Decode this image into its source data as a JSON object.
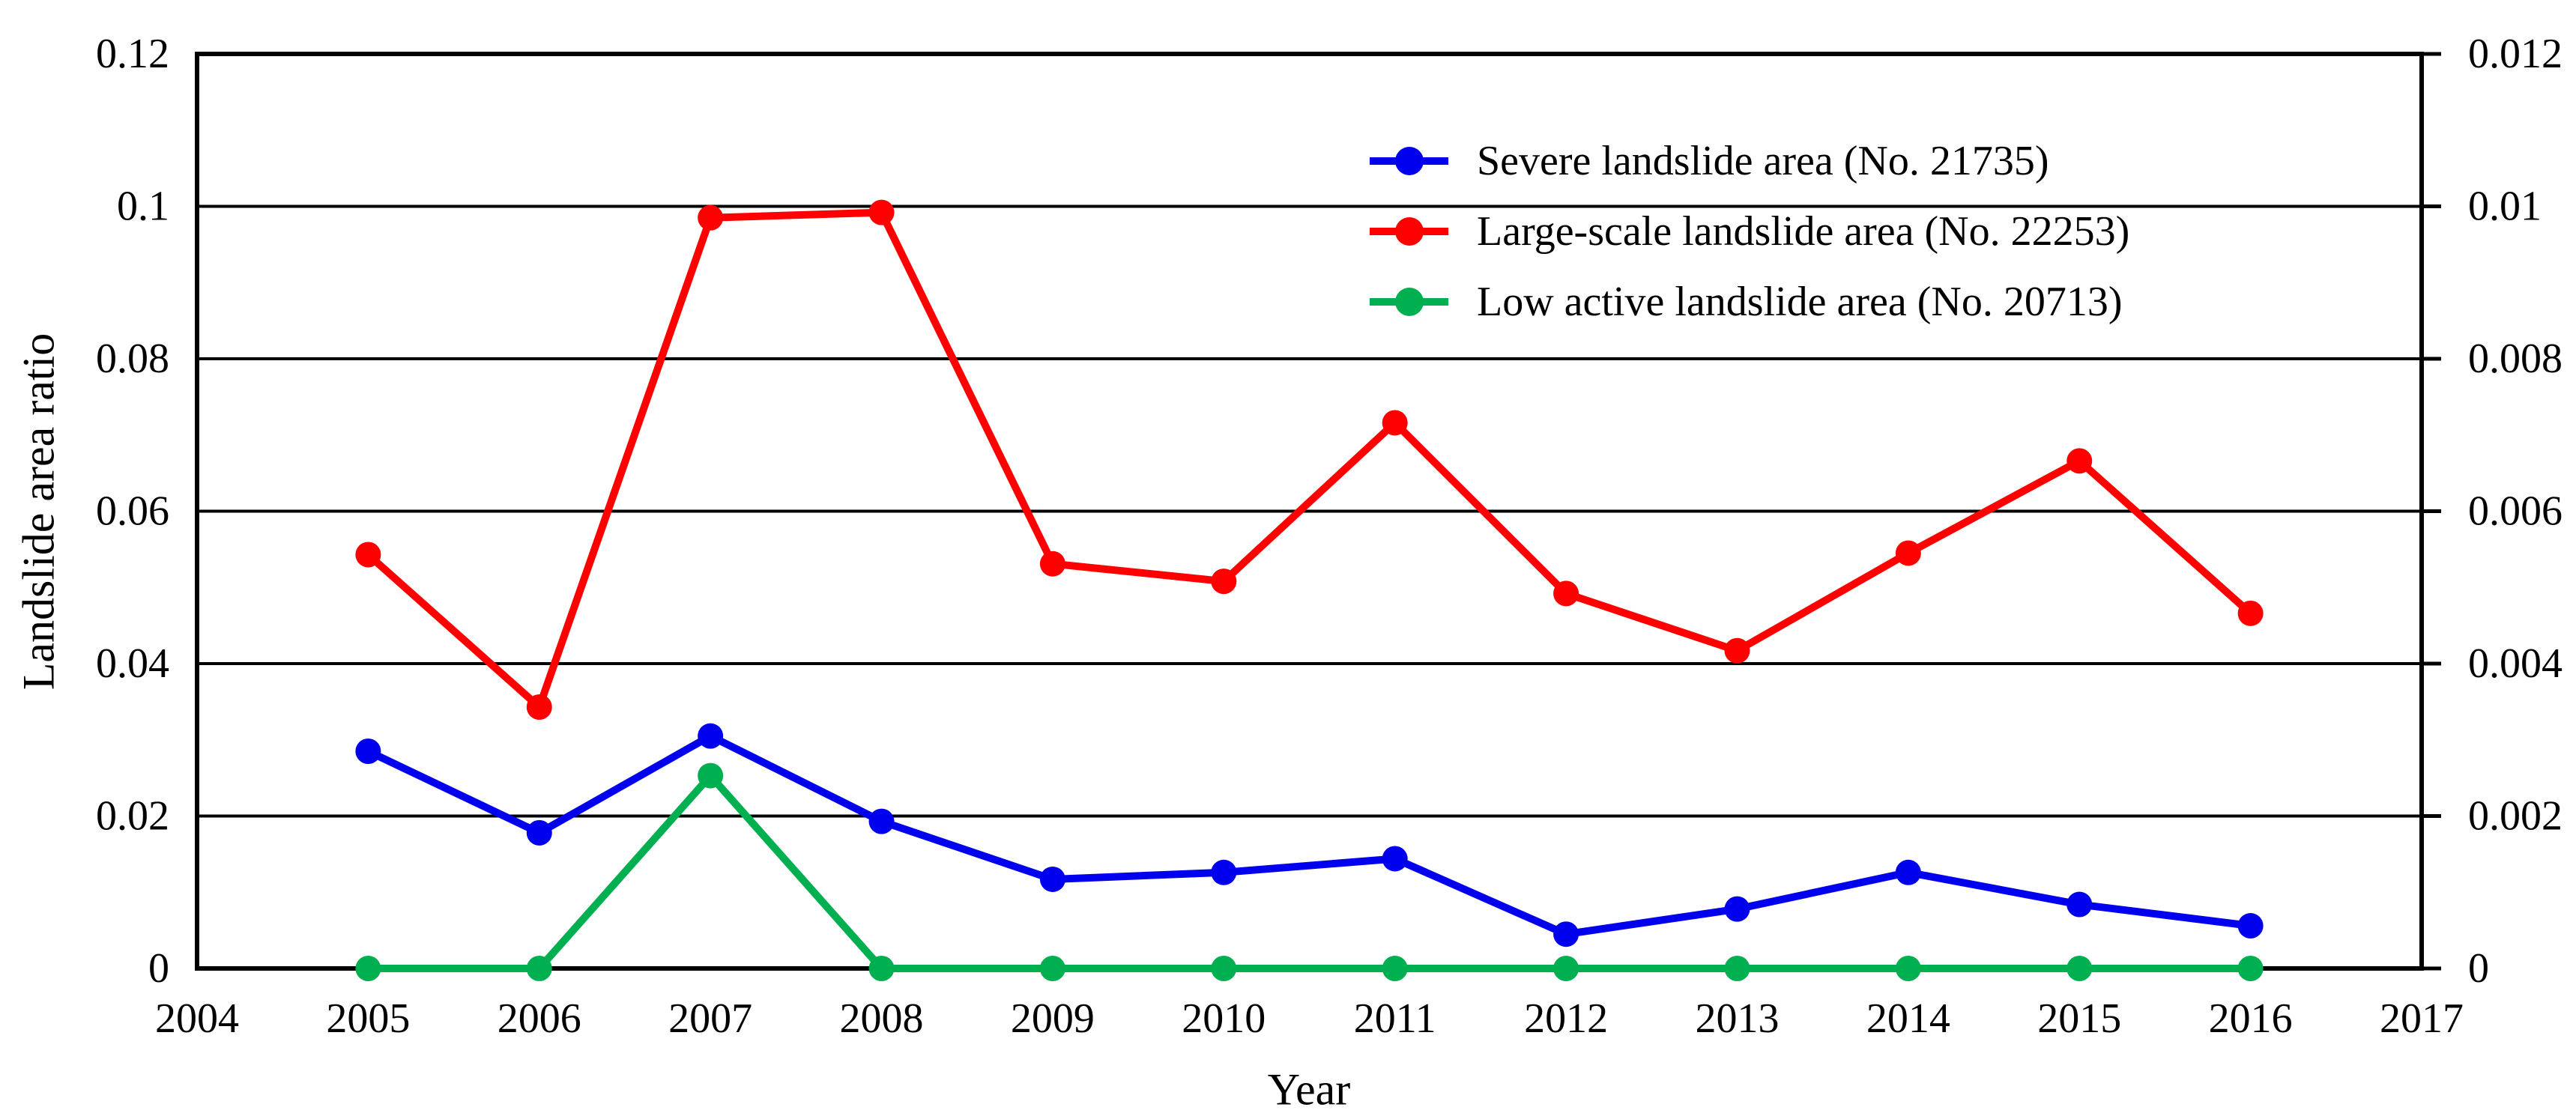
{
  "figure": {
    "background": "#ffffff",
    "text_color": "#000000",
    "gridline_color": "#000000"
  },
  "chart_data": {
    "type": "line",
    "title": "",
    "xlabel": "Year",
    "ylabel_left": "Landslide area ratio",
    "grid": "horizontal",
    "legend_position": "top-right",
    "marker": "circle",
    "x_axis": {
      "label": "Year",
      "min": 2004,
      "max": 2017,
      "tick_values": [
        2004,
        2005,
        2006,
        2007,
        2008,
        2009,
        2010,
        2011,
        2012,
        2013,
        2014,
        2015,
        2016,
        2017
      ],
      "tick_labels": [
        "2004",
        "2005",
        "2006",
        "2007",
        "2008",
        "2009",
        "2010",
        "2011",
        "2012",
        "2013",
        "2014",
        "2015",
        "2016",
        "2017"
      ]
    },
    "y_axis_left": {
      "label": "Landslide area ratio",
      "min": 0,
      "max": 0.12,
      "tick_values": [
        0,
        0.02,
        0.04,
        0.06,
        0.08,
        0.1,
        0.12
      ],
      "tick_labels": [
        "0",
        "0.02",
        "0.04",
        "0.06",
        "0.08",
        "0.1",
        "0.12"
      ]
    },
    "y_axis_right": {
      "label": "",
      "min": 0,
      "max": 0.012,
      "tick_values": [
        0,
        0.002,
        0.004,
        0.006,
        0.008,
        0.01,
        0.012
      ],
      "tick_labels": [
        "0",
        "0.002",
        "0.004",
        "0.006",
        "0.008",
        "0.01",
        "0.012"
      ]
    },
    "x": [
      2005,
      2006,
      2007,
      2008,
      2009,
      2010,
      2011,
      2012,
      2013,
      2014,
      2015,
      2016
    ],
    "series": [
      {
        "name": "Severe landslide area (No. 21735)",
        "color": "#0000EE",
        "axis": "left",
        "values": [
          0.0285,
          0.0178,
          0.0305,
          0.0193,
          0.0117,
          0.0126,
          0.0144,
          0.0045,
          0.0078,
          0.0126,
          0.0084,
          0.0056
        ]
      },
      {
        "name": "Large-scale landslide area (No. 22253)",
        "color": "#FF0000",
        "axis": "left",
        "values": [
          0.0543,
          0.0343,
          0.0985,
          0.0992,
          0.0531,
          0.0508,
          0.0716,
          0.0492,
          0.0417,
          0.0545,
          0.0666,
          0.0466
        ]
      },
      {
        "name": "Low active landslide area (No. 20713)",
        "color": "#00B050",
        "axis": "left",
        "values": [
          0,
          0,
          0.0253,
          0,
          0,
          0,
          0,
          0,
          0,
          0,
          0,
          0
        ]
      }
    ]
  }
}
